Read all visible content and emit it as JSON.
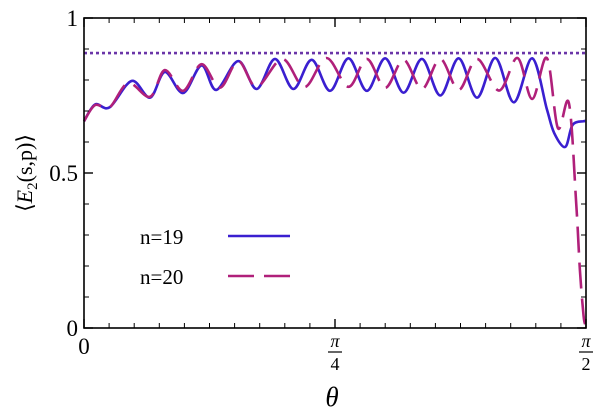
{
  "chart_data": {
    "type": "line",
    "title": "",
    "xlabel": "θ",
    "ylabel_parts": [
      "⟨",
      "E",
      "2",
      "(s,p)⟩"
    ],
    "xlim": [
      0,
      1.5708
    ],
    "ylim": [
      0,
      1
    ],
    "x_ticks": [
      {
        "value": 0,
        "label": "0"
      },
      {
        "value": 0.7854,
        "label_num": "π",
        "label_den": "4"
      },
      {
        "value": 1.5708,
        "label_num": "π",
        "label_den": "2"
      }
    ],
    "y_ticks": [
      {
        "value": 0,
        "label": "0"
      },
      {
        "value": 0.5,
        "label": "0.5"
      },
      {
        "value": 1,
        "label": "1"
      }
    ],
    "grid": false,
    "legend_position": "bottom-left",
    "series": [
      {
        "name": "n=19",
        "color": "#3a1fd0",
        "dash": "solid",
        "x": [
          0,
          0.0345,
          0.0805,
          0.1494,
          0.2069,
          0.2529,
          0.3103,
          0.3678,
          0.4138,
          0.4828,
          0.5402,
          0.5977,
          0.6552,
          0.7126,
          0.7701,
          0.8276,
          0.8851,
          0.9425,
          1.0,
          1.0575,
          1.1149,
          1.1724,
          1.2299,
          1.2874,
          1.3448,
          1.4023,
          1.4483,
          1.4713,
          1.5057,
          1.5287,
          1.5632,
          1.5684
        ],
        "y": [
          0.667,
          0.721,
          0.712,
          0.797,
          0.743,
          0.826,
          0.758,
          0.847,
          0.768,
          0.861,
          0.771,
          0.868,
          0.771,
          0.865,
          0.765,
          0.87,
          0.765,
          0.87,
          0.759,
          0.868,
          0.75,
          0.87,
          0.743,
          0.871,
          0.728,
          0.87,
          0.706,
          0.629,
          0.584,
          0.655,
          0.667,
          0.667
        ]
      },
      {
        "name": "n=20",
        "color": "#b0207a",
        "dash": "dashed",
        "x": [
          0,
          0.0345,
          0.0805,
          0.1379,
          0.2069,
          0.2529,
          0.3103,
          0.3678,
          0.4253,
          0.4828,
          0.5402,
          0.6207,
          0.6897,
          0.7586,
          0.8276,
          0.8851,
          0.9425,
          1.0,
          1.0575,
          1.1149,
          1.1724,
          1.2299,
          1.2989,
          1.3563,
          1.4023,
          1.4483,
          1.4828,
          1.5172,
          1.5402,
          1.5517,
          1.5632,
          1.569
        ],
        "y": [
          0.667,
          0.719,
          0.712,
          0.79,
          0.746,
          0.832,
          0.765,
          0.851,
          0.775,
          0.861,
          0.778,
          0.868,
          0.777,
          0.871,
          0.778,
          0.868,
          0.775,
          0.865,
          0.771,
          0.868,
          0.768,
          0.868,
          0.766,
          0.871,
          0.739,
          0.871,
          0.645,
          0.726,
          0.401,
          0.187,
          0.039,
          0.01
        ]
      },
      {
        "name": "",
        "color": "#6a35a8",
        "dash": "dotted",
        "x": [
          0,
          1.5708
        ],
        "y": [
          0.887,
          0.887
        ]
      }
    ],
    "legend": [
      {
        "label": "n=19",
        "series": 0
      },
      {
        "label": "n=20",
        "series": 1
      }
    ]
  }
}
